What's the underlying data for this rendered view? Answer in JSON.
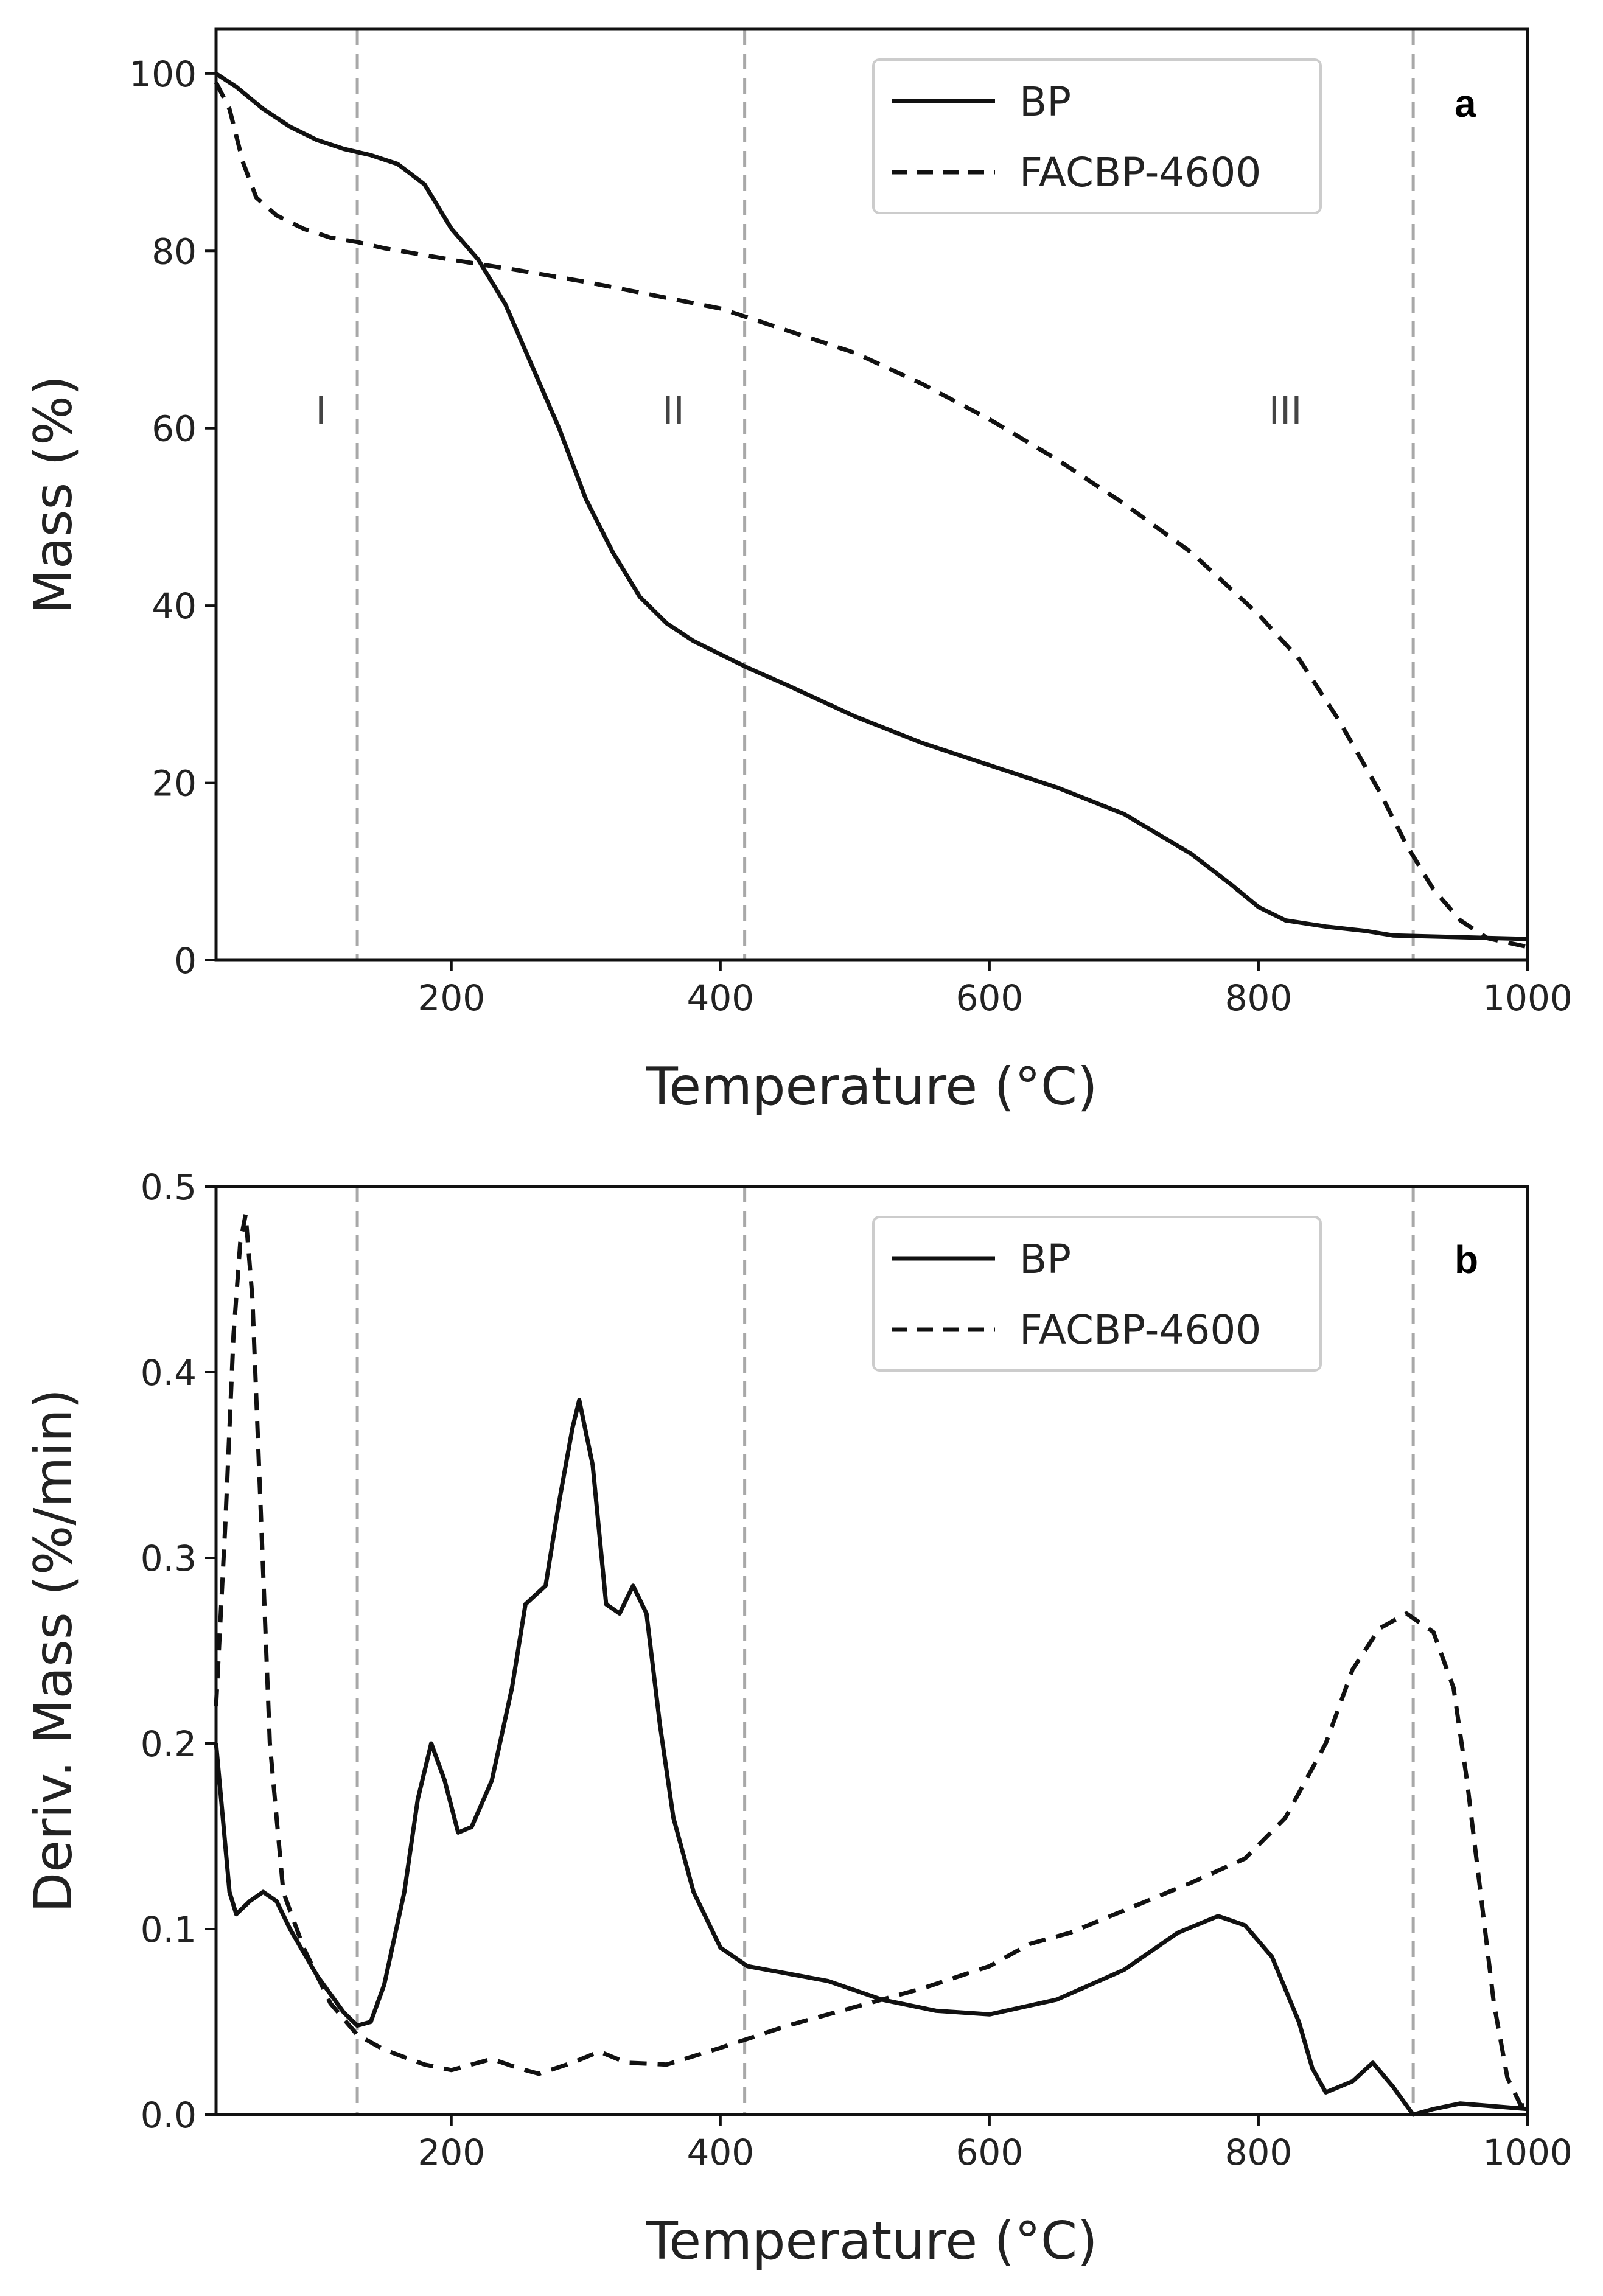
{
  "chart_data": [
    {
      "id": "a",
      "type": "line",
      "panel_label": "a",
      "xlabel": "Temperature (°C)",
      "ylabel": "Mass (%)",
      "xlim": [
        25,
        1000
      ],
      "ylim": [
        0,
        105
      ],
      "xticks": [
        200,
        400,
        600,
        800,
        1000
      ],
      "yticks": [
        0,
        20,
        40,
        60,
        80,
        100
      ],
      "ytick_labels": [
        "0",
        "20",
        "40",
        "60",
        "80",
        "100"
      ],
      "legend_position": "top-right",
      "vlines": [
        130,
        418,
        915
      ],
      "region_labels": [
        {
          "text": "I",
          "x": 103,
          "y": 62
        },
        {
          "text": "II",
          "x": 365,
          "y": 62
        },
        {
          "text": "III",
          "x": 820,
          "y": 62
        }
      ],
      "series": [
        {
          "name": "BP",
          "style": "solid",
          "points": [
            [
              25,
              100
            ],
            [
              40,
              98.5
            ],
            [
              60,
              96
            ],
            [
              80,
              94
            ],
            [
              100,
              92.5
            ],
            [
              120,
              91.5
            ],
            [
              140,
              90.8
            ],
            [
              160,
              89.8
            ],
            [
              180,
              87.5
            ],
            [
              200,
              82.5
            ],
            [
              220,
              79
            ],
            [
              240,
              74
            ],
            [
              260,
              67
            ],
            [
              280,
              60
            ],
            [
              300,
              52
            ],
            [
              320,
              46
            ],
            [
              340,
              41
            ],
            [
              360,
              38
            ],
            [
              380,
              36
            ],
            [
              400,
              34.5
            ],
            [
              420,
              33
            ],
            [
              450,
              31
            ],
            [
              500,
              27.5
            ],
            [
              550,
              24.5
            ],
            [
              600,
              22
            ],
            [
              650,
              19.5
            ],
            [
              700,
              16.5
            ],
            [
              750,
              12
            ],
            [
              780,
              8.5
            ],
            [
              800,
              6
            ],
            [
              820,
              4.5
            ],
            [
              850,
              3.8
            ],
            [
              880,
              3.3
            ],
            [
              900,
              2.8
            ],
            [
              950,
              2.6
            ],
            [
              1000,
              2.4
            ]
          ]
        },
        {
          "name": "FACBP-4600",
          "style": "dashed",
          "points": [
            [
              25,
              99
            ],
            [
              35,
              96
            ],
            [
              45,
              90
            ],
            [
              55,
              86
            ],
            [
              70,
              84
            ],
            [
              90,
              82.5
            ],
            [
              110,
              81.5
            ],
            [
              130,
              81
            ],
            [
              150,
              80.3
            ],
            [
              200,
              79
            ],
            [
              250,
              77.8
            ],
            [
              300,
              76.5
            ],
            [
              350,
              75
            ],
            [
              400,
              73.5
            ],
            [
              450,
              71
            ],
            [
              500,
              68.5
            ],
            [
              550,
              65
            ],
            [
              600,
              61
            ],
            [
              650,
              56.5
            ],
            [
              700,
              51.5
            ],
            [
              750,
              46
            ],
            [
              800,
              39
            ],
            [
              830,
              34
            ],
            [
              860,
              27
            ],
            [
              890,
              19
            ],
            [
              910,
              13
            ],
            [
              930,
              8
            ],
            [
              950,
              4.5
            ],
            [
              970,
              2.5
            ],
            [
              1000,
              1.5
            ]
          ]
        }
      ]
    },
    {
      "id": "b",
      "type": "line",
      "panel_label": "b",
      "xlabel": "Temperature (°C)",
      "ylabel": "Deriv. Mass (%/min)",
      "xlim": [
        25,
        1000
      ],
      "ylim": [
        0,
        0.5
      ],
      "xticks": [
        200,
        400,
        600,
        800,
        1000
      ],
      "yticks": [
        0.0,
        0.1,
        0.2,
        0.3,
        0.4,
        0.5
      ],
      "ytick_labels": [
        "0.0",
        "0.1",
        "0.2",
        "0.3",
        "0.4",
        "0.5"
      ],
      "legend_position": "top-right",
      "vlines": [
        130,
        418,
        915
      ],
      "series": [
        {
          "name": "BP",
          "style": "solid",
          "points": [
            [
              25,
              0.2
            ],
            [
              30,
              0.16
            ],
            [
              35,
              0.12
            ],
            [
              40,
              0.108
            ],
            [
              50,
              0.115
            ],
            [
              60,
              0.12
            ],
            [
              70,
              0.115
            ],
            [
              80,
              0.1
            ],
            [
              100,
              0.075
            ],
            [
              120,
              0.055
            ],
            [
              130,
              0.048
            ],
            [
              140,
              0.05
            ],
            [
              150,
              0.07
            ],
            [
              165,
              0.12
            ],
            [
              175,
              0.17
            ],
            [
              185,
              0.2
            ],
            [
              195,
              0.18
            ],
            [
              205,
              0.152
            ],
            [
              215,
              0.155
            ],
            [
              230,
              0.18
            ],
            [
              245,
              0.23
            ],
            [
              255,
              0.275
            ],
            [
              270,
              0.285
            ],
            [
              280,
              0.33
            ],
            [
              290,
              0.37
            ],
            [
              295,
              0.385
            ],
            [
              305,
              0.35
            ],
            [
              315,
              0.275
            ],
            [
              325,
              0.27
            ],
            [
              335,
              0.285
            ],
            [
              345,
              0.27
            ],
            [
              355,
              0.21
            ],
            [
              365,
              0.16
            ],
            [
              380,
              0.12
            ],
            [
              400,
              0.09
            ],
            [
              420,
              0.08
            ],
            [
              450,
              0.076
            ],
            [
              480,
              0.072
            ],
            [
              520,
              0.062
            ],
            [
              560,
              0.056
            ],
            [
              600,
              0.054
            ],
            [
              650,
              0.062
            ],
            [
              700,
              0.078
            ],
            [
              740,
              0.098
            ],
            [
              770,
              0.107
            ],
            [
              790,
              0.102
            ],
            [
              810,
              0.085
            ],
            [
              830,
              0.05
            ],
            [
              840,
              0.025
            ],
            [
              850,
              0.012
            ],
            [
              870,
              0.018
            ],
            [
              885,
              0.028
            ],
            [
              900,
              0.015
            ],
            [
              915,
              0.0
            ],
            [
              930,
              0.003
            ],
            [
              950,
              0.006
            ],
            [
              1000,
              0.003
            ]
          ]
        },
        {
          "name": "FACBP-4600",
          "style": "dashed",
          "points": [
            [
              25,
              0.22
            ],
            [
              32,
              0.32
            ],
            [
              38,
              0.42
            ],
            [
              43,
              0.47
            ],
            [
              47,
              0.485
            ],
            [
              52,
              0.44
            ],
            [
              58,
              0.33
            ],
            [
              65,
              0.2
            ],
            [
              75,
              0.12
            ],
            [
              90,
              0.09
            ],
            [
              110,
              0.06
            ],
            [
              130,
              0.043
            ],
            [
              150,
              0.035
            ],
            [
              180,
              0.027
            ],
            [
              200,
              0.024
            ],
            [
              230,
              0.03
            ],
            [
              250,
              0.025
            ],
            [
              265,
              0.022
            ],
            [
              290,
              0.028
            ],
            [
              310,
              0.034
            ],
            [
              330,
              0.028
            ],
            [
              360,
              0.027
            ],
            [
              400,
              0.036
            ],
            [
              450,
              0.048
            ],
            [
              500,
              0.058
            ],
            [
              550,
              0.068
            ],
            [
              600,
              0.08
            ],
            [
              630,
              0.092
            ],
            [
              660,
              0.098
            ],
            [
              700,
              0.11
            ],
            [
              750,
              0.125
            ],
            [
              790,
              0.138
            ],
            [
              820,
              0.16
            ],
            [
              850,
              0.2
            ],
            [
              870,
              0.24
            ],
            [
              890,
              0.262
            ],
            [
              910,
              0.27
            ],
            [
              930,
              0.26
            ],
            [
              945,
              0.23
            ],
            [
              955,
              0.18
            ],
            [
              965,
              0.12
            ],
            [
              975,
              0.06
            ],
            [
              985,
              0.02
            ],
            [
              995,
              0.005
            ],
            [
              1000,
              0.005
            ]
          ]
        }
      ]
    }
  ],
  "legend": {
    "bp_label": "BP",
    "facbp_label": "FACBP-4600"
  }
}
